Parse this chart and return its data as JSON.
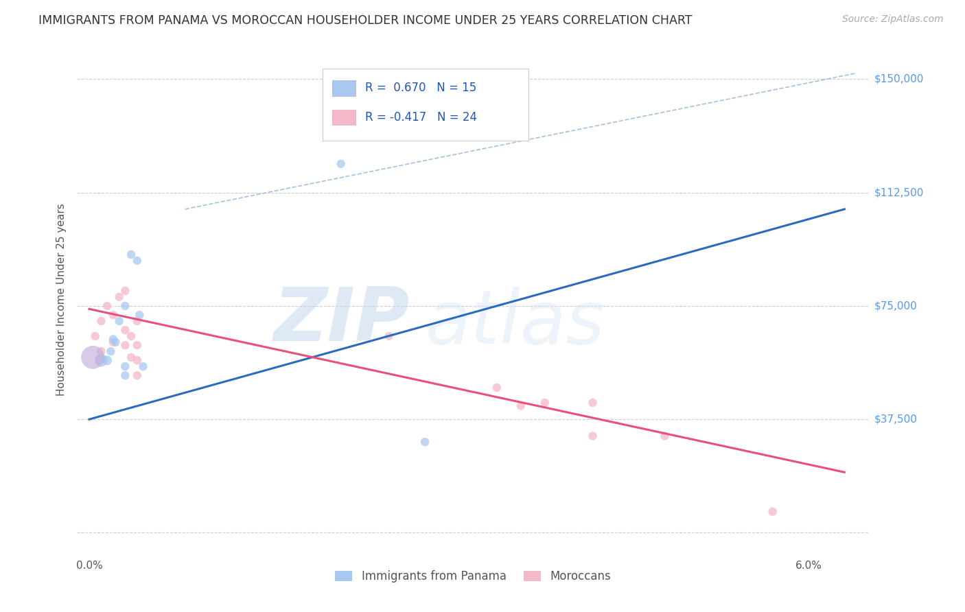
{
  "title": "IMMIGRANTS FROM PANAMA VS MOROCCAN HOUSEHOLDER INCOME UNDER 25 YEARS CORRELATION CHART",
  "source": "Source: ZipAtlas.com",
  "ylabel": "Householder Income Under 25 years",
  "y_ticks": [
    0,
    37500,
    75000,
    112500,
    150000
  ],
  "y_tick_labels": [
    "",
    "$37,500",
    "$75,000",
    "$112,500",
    "$150,000"
  ],
  "xlim": [
    -0.001,
    0.065
  ],
  "ylim": [
    -8000,
    162000
  ],
  "blue_R": 0.67,
  "blue_N": 15,
  "pink_R": -0.417,
  "pink_N": 24,
  "blue_color": "#a8c8f0",
  "pink_color": "#f5b8c8",
  "blue_line_color": "#2a6bbf",
  "pink_line_color": "#e8507a",
  "legend_label_blue": "Immigrants from Panama",
  "legend_label_pink": "Moroccans",
  "watermark_zip": "ZIP",
  "watermark_atlas": "atlas",
  "background_color": "#ffffff",
  "grid_color": "#cccccc",
  "blue_points": [
    [
      0.001,
      57000,
      180
    ],
    [
      0.0015,
      57000,
      100
    ],
    [
      0.0018,
      60000,
      80
    ],
    [
      0.002,
      64000,
      80
    ],
    [
      0.0022,
      63000,
      80
    ],
    [
      0.0025,
      70000,
      80
    ],
    [
      0.003,
      75000,
      80
    ],
    [
      0.003,
      55000,
      80
    ],
    [
      0.003,
      52000,
      80
    ],
    [
      0.0035,
      92000,
      80
    ],
    [
      0.004,
      90000,
      80
    ],
    [
      0.0042,
      72000,
      80
    ],
    [
      0.0045,
      55000,
      80
    ],
    [
      0.021,
      122000,
      80
    ],
    [
      0.028,
      30000,
      80
    ]
  ],
  "pink_points": [
    [
      0.0005,
      65000,
      80
    ],
    [
      0.001,
      70000,
      80
    ],
    [
      0.001,
      60000,
      80
    ],
    [
      0.0015,
      75000,
      80
    ],
    [
      0.002,
      72000,
      80
    ],
    [
      0.002,
      63000,
      80
    ],
    [
      0.0025,
      78000,
      80
    ],
    [
      0.003,
      80000,
      80
    ],
    [
      0.003,
      67000,
      80
    ],
    [
      0.003,
      62000,
      80
    ],
    [
      0.0035,
      65000,
      80
    ],
    [
      0.0035,
      58000,
      80
    ],
    [
      0.004,
      70000,
      80
    ],
    [
      0.004,
      62000,
      80
    ],
    [
      0.004,
      57000,
      80
    ],
    [
      0.004,
      52000,
      80
    ],
    [
      0.025,
      65000,
      80
    ],
    [
      0.034,
      48000,
      80
    ],
    [
      0.036,
      42000,
      80
    ],
    [
      0.038,
      43000,
      80
    ],
    [
      0.042,
      43000,
      80
    ],
    [
      0.042,
      32000,
      80
    ],
    [
      0.048,
      32000,
      80
    ],
    [
      0.057,
      7000,
      80
    ]
  ],
  "ref_line_color": "#99bbdd",
  "blue_line_y0": 37500,
  "blue_line_y1": 107000,
  "pink_line_y0": 74000,
  "pink_line_y1": 20000
}
